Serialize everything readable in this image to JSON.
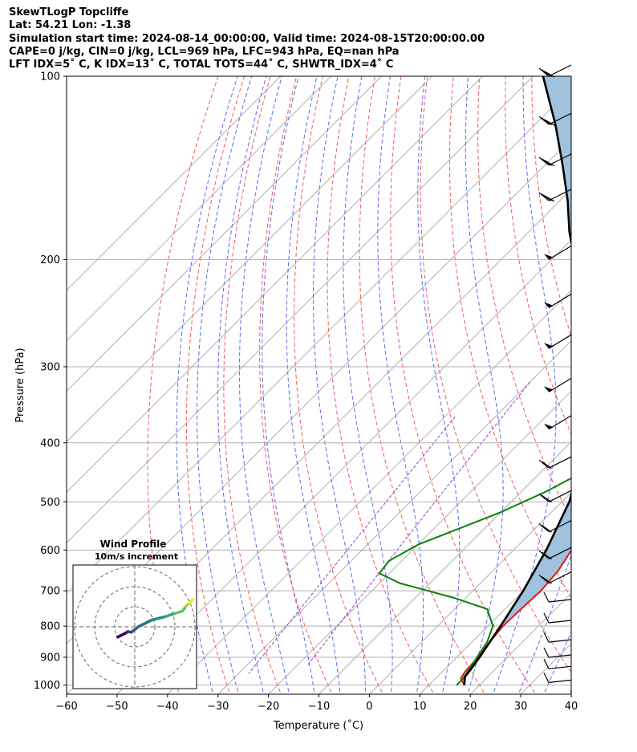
{
  "header": {
    "title": "SkewTLogP Topcliffe",
    "location": "Lat: 54.21   Lon: -1.38",
    "times": "Simulation start time: 2024-08-14_00:00:00, Valid time: 2024-08-15T20:00:00.00",
    "params": "CAPE=0 j/kg, CIN=0 j/kg, LCL=969 hPa, LFC=943 hPa, EQ=nan hPa",
    "indices": "LFT IDX=5˚ C, K IDX=13˚ C, TOTAL TOTS=44˚ C, SHWTR_IDX=4˚ C"
  },
  "chart_data": {
    "type": "line",
    "title": "SkewTLogP Topcliffe",
    "xlabel": "Temperature (˚C)",
    "ylabel": "Pressure (hPa)",
    "xlim": [
      -60,
      40
    ],
    "ylim": [
      1035,
      100
    ],
    "y_scale": "log",
    "grid": true,
    "x_ticks": [
      "−60",
      "−50",
      "−40",
      "−30",
      "−20",
      "−10",
      "0",
      "10",
      "20",
      "30",
      "40"
    ],
    "y_ticks": [
      "100",
      "200",
      "300",
      "400",
      "500",
      "600",
      "700",
      "800",
      "900",
      "1000"
    ],
    "series": [
      {
        "id": "temperature",
        "color": "#e8141a",
        "points": [
          [
            17,
            1000
          ],
          [
            15,
            975
          ],
          [
            14.5,
            950
          ],
          [
            14.2,
            900
          ],
          [
            13.5,
            850
          ],
          [
            13,
            800
          ],
          [
            13.2,
            750
          ],
          [
            13.5,
            700
          ],
          [
            13,
            650
          ],
          [
            11.5,
            600
          ],
          [
            9.5,
            550
          ],
          [
            7.5,
            510
          ],
          [
            5.5,
            475
          ],
          [
            5,
            450
          ],
          [
            4.5,
            420
          ],
          [
            4.5,
            400
          ],
          [
            5,
            375
          ],
          [
            4.5,
            355
          ],
          [
            2.5,
            320
          ],
          [
            0.5,
            290
          ],
          [
            -1.5,
            262
          ],
          [
            -2.5,
            240
          ],
          [
            -2.5,
            220
          ],
          [
            -2,
            210
          ],
          [
            -1.5,
            200
          ],
          [
            0,
            190
          ],
          [
            2,
            180
          ],
          [
            4.5,
            170
          ],
          [
            7,
            160
          ],
          [
            8.5,
            150
          ],
          [
            9,
            140
          ],
          [
            9.5,
            130
          ],
          [
            10.5,
            120
          ],
          [
            11.5,
            113
          ],
          [
            13,
            106
          ],
          [
            14,
            100
          ]
        ]
      },
      {
        "id": "dewpoint",
        "color": "#068208",
        "points": [
          [
            15.5,
            1000
          ],
          [
            15.5,
            975
          ],
          [
            15,
            950
          ],
          [
            14,
            900
          ],
          [
            13,
            850
          ],
          [
            11,
            800
          ],
          [
            6.5,
            750
          ],
          [
            -2,
            720
          ],
          [
            -16,
            680
          ],
          [
            -22,
            655
          ],
          [
            -22.5,
            625
          ],
          [
            -20,
            588
          ],
          [
            -10,
            520
          ],
          [
            -5,
            480
          ],
          [
            -1,
            440
          ],
          [
            2.5,
            400
          ],
          [
            3,
            370
          ],
          [
            1,
            345
          ],
          [
            -2.5,
            320
          ],
          [
            -5,
            290
          ],
          [
            -6.5,
            270
          ],
          [
            -7,
            255
          ],
          [
            -8,
            240
          ],
          [
            -10,
            225
          ],
          [
            -13,
            210
          ],
          [
            -16,
            195
          ],
          [
            -19,
            183
          ],
          [
            -20,
            175
          ],
          [
            -22.5,
            163
          ],
          [
            -24.5,
            150
          ],
          [
            -25.5,
            140
          ],
          [
            -24,
            130
          ],
          [
            -22,
            120
          ],
          [
            -19.5,
            110
          ],
          [
            -16,
            100
          ]
        ]
      },
      {
        "id": "parcel",
        "color": "#000000",
        "points": [
          [
            17,
            1000
          ],
          [
            15.5,
            969
          ],
          [
            15.2,
            943
          ],
          [
            14.5,
            900
          ],
          [
            12.5,
            800
          ],
          [
            10,
            700
          ],
          [
            6.5,
            600
          ],
          [
            1.5,
            500
          ],
          [
            -2.5,
            450
          ],
          [
            -8.5,
            400
          ],
          [
            -15.5,
            350
          ],
          [
            -24,
            300
          ],
          [
            -29.5,
            270
          ],
          [
            -36,
            240
          ],
          [
            -43,
            210
          ],
          [
            -47,
            195
          ],
          [
            -52,
            180
          ],
          [
            -58.5,
            160
          ],
          [
            -66.5,
            140
          ],
          [
            -76,
            120
          ],
          [
            -88,
            100
          ]
        ]
      }
    ],
    "wind_barbs_hpa": [
      100,
      120,
      140,
      160,
      200,
      240,
      280,
      330,
      380,
      440,
      500,
      560,
      620,
      680,
      730,
      790,
      850,
      900,
      940,
      990
    ]
  },
  "inset": {
    "title": "Wind Profile",
    "subtitle": "10m/s increment",
    "hodograph": [
      [
        -2.5,
        -1.5
      ],
      [
        -1.5,
        -1
      ],
      [
        -1,
        -0.7
      ],
      [
        -0.5,
        -0.8
      ],
      [
        0.5,
        0
      ],
      [
        1.5,
        0.5
      ],
      [
        2.5,
        1
      ],
      [
        4.5,
        1.5
      ],
      [
        6,
        2
      ],
      [
        7,
        2.3
      ],
      [
        7.5,
        3
      ],
      [
        8,
        3.5
      ],
      [
        8.5,
        4
      ]
    ]
  }
}
